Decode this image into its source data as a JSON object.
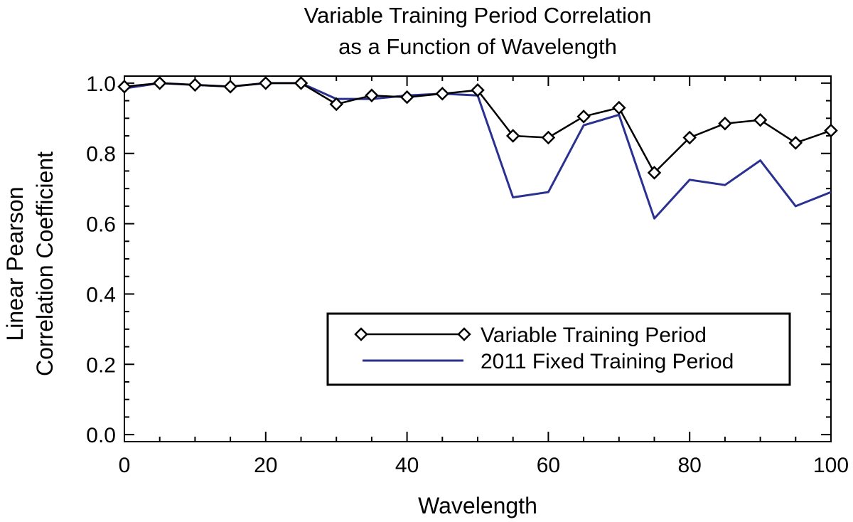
{
  "chart_data": {
    "type": "line",
    "title_lines": [
      "Variable Training Period Correlation",
      "as a Function of Wavelength"
    ],
    "xlabel": "Wavelength",
    "ylabel_lines": [
      "Linear Pearson",
      "Correlation Coefficient"
    ],
    "xlim": [
      0,
      100
    ],
    "ylim": [
      -0.02,
      1.02
    ],
    "xticks": [
      0,
      20,
      40,
      60,
      80,
      100
    ],
    "xtick_labels": [
      "0",
      "20",
      "40",
      "60",
      "80",
      "100"
    ],
    "yticks": [
      0.0,
      0.2,
      0.4,
      0.6,
      0.8,
      1.0
    ],
    "ytick_labels": [
      "0.0",
      "0.2",
      "0.4",
      "0.6",
      "0.8",
      "1.0"
    ],
    "grid": false,
    "legend_position": "lower-right",
    "x": [
      0,
      5,
      10,
      15,
      20,
      25,
      30,
      35,
      40,
      45,
      50,
      55,
      60,
      65,
      70,
      75,
      80,
      85,
      90,
      95,
      100
    ],
    "series": [
      {
        "name": "Variable Training Period",
        "color": "#000000",
        "marker": "diamond",
        "values": [
          0.99,
          1.0,
          0.995,
          0.99,
          1.0,
          1.0,
          0.94,
          0.965,
          0.96,
          0.97,
          0.98,
          0.85,
          0.845,
          0.905,
          0.93,
          0.745,
          0.845,
          0.885,
          0.895,
          0.83,
          0.865
        ]
      },
      {
        "name": "2011 Fixed Training Period",
        "color": "#2b3190",
        "marker": "none",
        "values": [
          0.985,
          1.0,
          0.995,
          0.99,
          1.0,
          1.0,
          0.955,
          0.955,
          0.965,
          0.97,
          0.965,
          0.675,
          0.69,
          0.88,
          0.91,
          0.615,
          0.725,
          0.71,
          0.78,
          0.65,
          0.69
        ]
      }
    ]
  }
}
